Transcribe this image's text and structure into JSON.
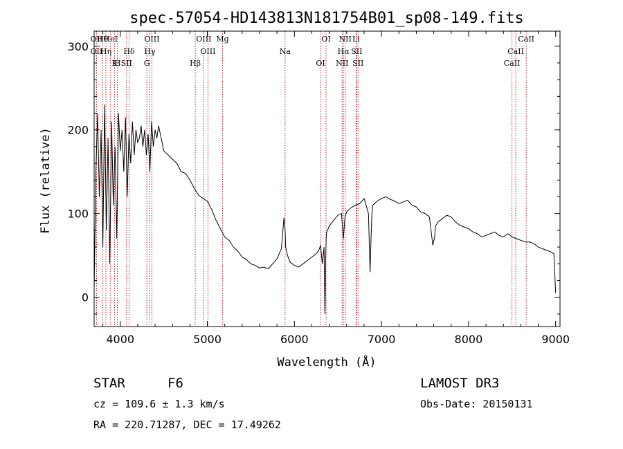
{
  "chart_data": {
    "type": "line",
    "title": "spec-57054-HD143813N181754B01_sp08-149.fits",
    "xlabel": "Wavelength (Å)",
    "ylabel": "Flux (relative)",
    "xlim": [
      3700,
      9050
    ],
    "ylim": [
      -35,
      318
    ],
    "x_ticks": [
      4000,
      5000,
      6000,
      7000,
      8000,
      9000
    ],
    "y_ticks": [
      0,
      100,
      200,
      300
    ],
    "grid": false,
    "series": [
      {
        "x": [
          3700,
          3720,
          3740,
          3760,
          3780,
          3800,
          3820,
          3840,
          3860,
          3880,
          3900,
          3920,
          3940,
          3960,
          3980,
          4000,
          4020,
          4040,
          4060,
          4080,
          4100,
          4120,
          4140,
          4160,
          4180,
          4200,
          4220,
          4240,
          4260,
          4280,
          4300,
          4320,
          4340,
          4360,
          4380,
          4400,
          4420,
          4440,
          4460,
          4480,
          4500,
          4550,
          4600,
          4650,
          4700,
          4750,
          4800,
          4850,
          4900,
          4950,
          5000,
          5050,
          5100,
          5150,
          5200,
          5250,
          5300,
          5350,
          5400,
          5450,
          5500,
          5550,
          5600,
          5650,
          5700,
          5750,
          5800,
          5850,
          5880,
          5893,
          5900,
          5920,
          5950,
          6000,
          6050,
          6100,
          6150,
          6200,
          6250,
          6280,
          6300,
          6320,
          6340,
          6350,
          6360,
          6365,
          6370,
          6380,
          6400,
          6450,
          6500,
          6540,
          6563,
          6580,
          6600,
          6650,
          6700,
          6750,
          6800,
          6850,
          6869,
          6880,
          6890,
          6900,
          6950,
          7000,
          7050,
          7100,
          7150,
          7200,
          7250,
          7300,
          7350,
          7400,
          7450,
          7500,
          7550,
          7590,
          7610,
          7620,
          7650,
          7700,
          7750,
          7800,
          7850,
          7900,
          7950,
          8000,
          8050,
          8100,
          8150,
          8200,
          8250,
          8300,
          8350,
          8400,
          8450,
          8500,
          8550,
          8600,
          8650,
          8700,
          8750,
          8800,
          8850,
          8900,
          8950,
          8980,
          9000
        ],
        "y": [
          10,
          150,
          220,
          120,
          200,
          60,
          230,
          80,
          190,
          40,
          210,
          110,
          180,
          70,
          220,
          175,
          200,
          150,
          215,
          120,
          195,
          160,
          210,
          170,
          200,
          185,
          190,
          205,
          180,
          200,
          170,
          195,
          150,
          210,
          180,
          200,
          190,
          205,
          195,
          185,
          175,
          170,
          165,
          160,
          150,
          148,
          140,
          130,
          122,
          118,
          115,
          105,
          92,
          82,
          72,
          68,
          60,
          55,
          48,
          45,
          40,
          38,
          35,
          36,
          34,
          40,
          46,
          58,
          95,
          80,
          60,
          50,
          42,
          38,
          36,
          40,
          44,
          48,
          52,
          56,
          62,
          40,
          60,
          -20,
          50,
          70,
          78,
          80,
          85,
          92,
          98,
          100,
          70,
          95,
          102,
          107,
          110,
          112,
          118,
          100,
          30,
          70,
          100,
          110,
          115,
          118,
          120,
          117,
          115,
          112,
          114,
          116,
          110,
          108,
          102,
          100,
          96,
          62,
          72,
          85,
          90,
          94,
          98,
          96,
          90,
          86,
          84,
          82,
          78,
          76,
          72,
          74,
          76,
          78,
          74,
          72,
          76,
          72,
          70,
          68,
          66,
          66,
          64,
          60,
          58,
          56,
          54,
          52,
          5
        ]
      }
    ],
    "lines": [
      {
        "name": "Hθ",
        "wl": 3798
      },
      {
        "name": "OII",
        "wl": 3727
      },
      {
        "name": "K",
        "wl": 3934
      },
      {
        "name": "HeI",
        "wl": 3889
      },
      {
        "name": "Hη",
        "wl": 3835
      },
      {
        "name": "H",
        "wl": 3968
      },
      {
        "name": "OII",
        "wl": 3727
      },
      {
        "name": "Hδ",
        "wl": 4101
      },
      {
        "name": "SII",
        "wl": 4072
      },
      {
        "name": "OIII",
        "wl": 4363
      },
      {
        "name": "Hγ",
        "wl": 4340
      },
      {
        "name": "G",
        "wl": 4305
      },
      {
        "name": "OIII",
        "wl": 4959
      },
      {
        "name": "OIII",
        "wl": 5007
      },
      {
        "name": "Hβ",
        "wl": 4861
      },
      {
        "name": "Mg",
        "wl": 5175
      },
      {
        "name": "Na",
        "wl": 5893
      },
      {
        "name": "OI",
        "wl": 6300
      },
      {
        "name": "OI",
        "wl": 6363
      },
      {
        "name": "Hα",
        "wl": 6563
      },
      {
        "name": "NII",
        "wl": 6548
      },
      {
        "name": "NII",
        "wl": 6583
      },
      {
        "name": "SII",
        "wl": 6716
      },
      {
        "name": "SII",
        "wl": 6731
      },
      {
        "name": "Li",
        "wl": 6708
      },
      {
        "name": "CaII",
        "wl": 8542
      },
      {
        "name": "CaII",
        "wl": 8498
      },
      {
        "name": "CaII",
        "wl": 8662
      }
    ]
  },
  "info": {
    "object_class": "STAR",
    "subclass": "F6",
    "survey": "LAMOST DR3",
    "cz": "cz = 109.6 ± 1.3 km/s",
    "obs_date": "Obs-Date: 20150131",
    "radec": "RA = 220.71287, DEC =  17.49262"
  },
  "colors": {
    "spectrum": "#000000",
    "line_marker": "#b22222",
    "axes": "#000000"
  }
}
